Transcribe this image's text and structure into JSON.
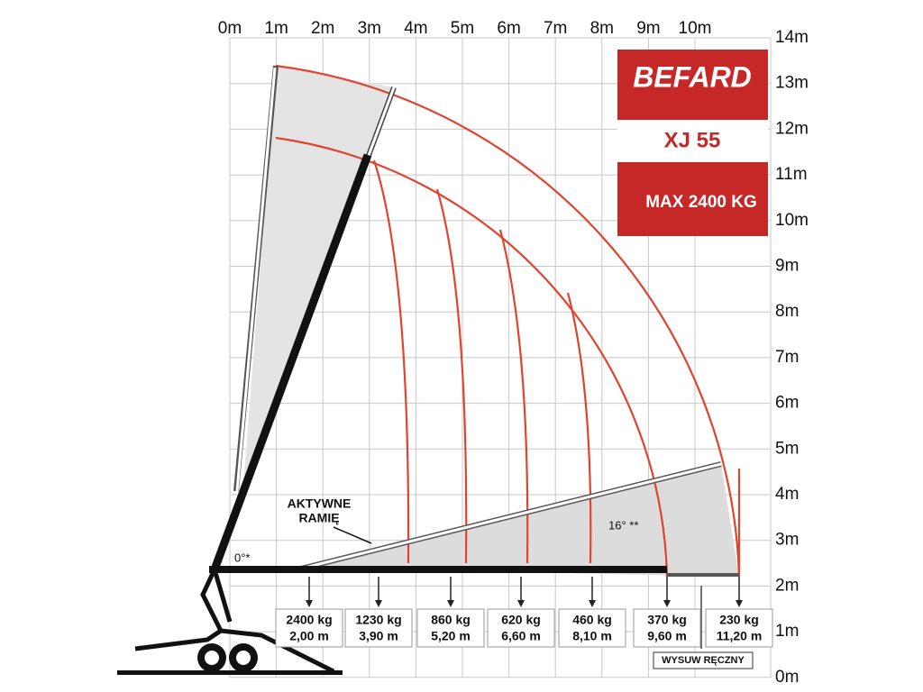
{
  "x_axis": {
    "labels": [
      "0m",
      "1m",
      "2m",
      "3m",
      "4m",
      "5m",
      "6m",
      "7m",
      "8m",
      "9m",
      "10m"
    ]
  },
  "y_axis": {
    "labels": [
      "14m",
      "13m",
      "12m",
      "11m",
      "10m",
      "9m",
      "8m",
      "7m",
      "6m",
      "5m",
      "4m",
      "3m",
      "2m",
      "1m",
      "0m"
    ]
  },
  "brand": {
    "logo": "BEFARD",
    "model": "XJ 55",
    "capacity": "MAX 2400 KG"
  },
  "loads": [
    {
      "weight": "2400 kg",
      "reach": "2,00 m"
    },
    {
      "weight": "1230 kg",
      "reach": "3,90 m"
    },
    {
      "weight": "860 kg",
      "reach": "5,20 m"
    },
    {
      "weight": "620 kg",
      "reach": "6,60 m"
    },
    {
      "weight": "460 kg",
      "reach": "8,10 m"
    },
    {
      "weight": "370 kg",
      "reach": "9,60 m"
    },
    {
      "weight": "230 kg",
      "reach": "11,20 m"
    }
  ],
  "annotations": {
    "active_arm": [
      "AKTYWNE",
      "RAMIĘ"
    ],
    "zero_angle": "0°*",
    "angle": "16° **",
    "manual_extension": "WYSUW RĘCZNY"
  }
}
